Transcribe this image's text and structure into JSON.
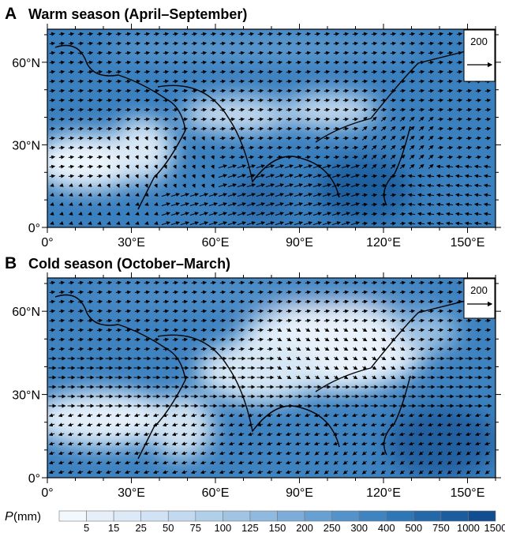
{
  "panels": [
    {
      "letter": "A",
      "title": "Warm season (April–September)",
      "ref_vector": "200"
    },
    {
      "letter": "B",
      "title": "Cold season (October–March)",
      "ref_vector": "200"
    }
  ],
  "x_ticks": [
    "0°",
    "30°E",
    "60°E",
    "90°E",
    "120°E",
    "150°E"
  ],
  "y_ticks": [
    "0°",
    "30°N",
    "60°N"
  ],
  "colorbar": {
    "label_var": "P",
    "label_unit": " (mm)",
    "bounds": [
      "5",
      "15",
      "25",
      "50",
      "75",
      "100",
      "125",
      "150",
      "200",
      "250",
      "300",
      "400",
      "500",
      "750",
      "1000",
      "1500"
    ],
    "colors": [
      "#f3f8fd",
      "#e6eff9",
      "#dce9f6",
      "#d0e2f3",
      "#c3d9ef",
      "#b2cfe9",
      "#a1c4e3",
      "#8fb9de",
      "#7cadd8",
      "#67a0d1",
      "#5393c9",
      "#3f84c0",
      "#2f76b6",
      "#2568aa",
      "#1b5b9e",
      "#124d90"
    ]
  },
  "chart_data": {
    "type": "map",
    "lon_range": [
      0,
      160
    ],
    "lat_range": [
      0,
      72
    ],
    "x_ticks": [
      0,
      30,
      60,
      90,
      120,
      150
    ],
    "y_ticks": [
      0,
      30,
      60
    ],
    "colorbar_levels_mm": [
      5,
      15,
      25,
      50,
      75,
      100,
      125,
      150,
      200,
      250,
      300,
      400,
      500,
      750,
      1000,
      1500
    ],
    "reference_vector": 200
  }
}
